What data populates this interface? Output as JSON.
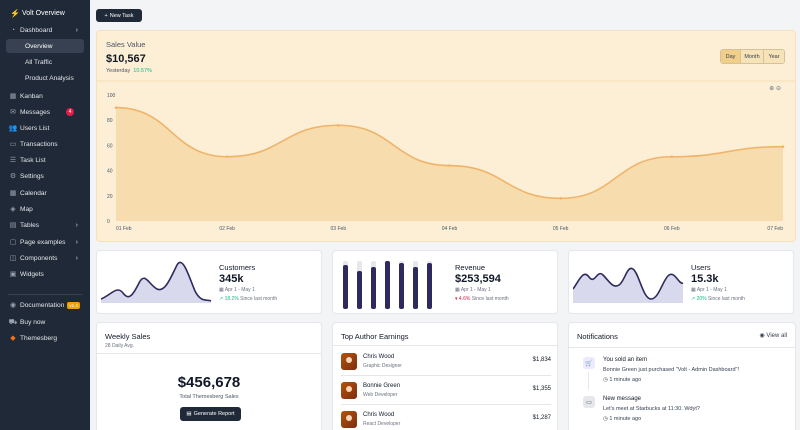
{
  "sidebar": {
    "brand": "Volt Overview",
    "items": [
      {
        "icon": "pie-chart-icon",
        "label": "Dashboard",
        "chevron": true
      },
      {
        "label": "Overview",
        "sub": true,
        "active": true
      },
      {
        "label": "All Traffic",
        "sub": true
      },
      {
        "label": "Product Analysis",
        "sub": true
      },
      {
        "icon": "grid-icon",
        "label": "Kanban"
      },
      {
        "icon": "inbox-icon",
        "label": "Messages",
        "badge": "4"
      },
      {
        "icon": "users-icon",
        "label": "Users List"
      },
      {
        "icon": "credit-card-icon",
        "label": "Transactions"
      },
      {
        "icon": "list-icon",
        "label": "Task List"
      },
      {
        "icon": "gear-icon",
        "label": "Settings"
      },
      {
        "icon": "calendar-icon",
        "label": "Calendar"
      },
      {
        "icon": "map-icon",
        "label": "Map"
      },
      {
        "icon": "table-icon",
        "label": "Tables",
        "chevron": true
      },
      {
        "icon": "document-icon",
        "label": "Page examples",
        "chevron": true
      },
      {
        "icon": "components-icon",
        "label": "Components",
        "chevron": true
      },
      {
        "icon": "widgets-icon",
        "label": "Widgets"
      }
    ],
    "footer": [
      {
        "icon": "book-icon",
        "label": "Documentation",
        "pro": "v1.4"
      },
      {
        "icon": "cart-icon",
        "label": "Buy now"
      },
      {
        "icon": "themesberg-icon",
        "label": "Themesberg"
      }
    ]
  },
  "toolbar": {
    "new_task": "New Task"
  },
  "sales": {
    "title": "Sales Value",
    "value": "$10,567",
    "yesterday_label": "Yesterday",
    "yesterday_pct": "10.57%",
    "periods": [
      "Day",
      "Month",
      "Year"
    ],
    "active_period": "Day"
  },
  "chart_data": {
    "type": "area",
    "x": [
      "01 Feb",
      "02 Feb",
      "03 Feb",
      "04 Feb",
      "05 Feb",
      "06 Feb",
      "07 Feb"
    ],
    "values": [
      90,
      51,
      76,
      44,
      18,
      51,
      59
    ],
    "ylim": [
      0,
      100
    ],
    "yticks": [
      "100",
      "80",
      "60",
      "40",
      "20",
      "0"
    ],
    "grid": false,
    "fill_color": "#f7dcae",
    "line_color": "#f0b36a"
  },
  "stats": [
    {
      "label": "Customers",
      "value": "345k",
      "range": "Apr 1 - May 1",
      "delta": "18.2%",
      "delta_dir": "up",
      "delta_note": "Since last month"
    },
    {
      "label": "Revenue",
      "value": "$253,594",
      "range": "Apr 1 - May 1",
      "delta": "4.6%",
      "delta_dir": "down",
      "delta_note": "Since last month"
    },
    {
      "label": "Users",
      "value": "15.3k",
      "range": "Apr 1 - May 1",
      "delta": "20%",
      "delta_dir": "up",
      "delta_note": "Since last month"
    }
  ],
  "weekly": {
    "title": "Weekly Sales",
    "subtitle": "28 Daily Avg.",
    "value": "$456,678",
    "value_label": "Total Themesberg Sales",
    "button": "Generate Report"
  },
  "authors": {
    "title": "Top Author Earnings",
    "rows": [
      {
        "name": "Chris Wood",
        "role": "Graphic Designer",
        "amount": "$1,834"
      },
      {
        "name": "Bonnie Green",
        "role": "Web Developer",
        "amount": "$1,355"
      },
      {
        "name": "Chris Wood",
        "role": "React Developer",
        "amount": "$1,287"
      }
    ]
  },
  "notifications": {
    "title": "Notifications",
    "view_all": "View all",
    "items": [
      {
        "title": "You sold an item",
        "body": "Bonnie Green just purchased \"Volt - Admin Dashboard\"!",
        "time": "1 minute ago",
        "icon": "cart-icon",
        "color": "#ede9fe"
      },
      {
        "title": "New message",
        "body": "Let's meet at Starbucks at 11:30. Wdyt?",
        "time": "1 minute ago",
        "icon": "laptop-icon",
        "color": "#e5e7eb"
      }
    ]
  }
}
